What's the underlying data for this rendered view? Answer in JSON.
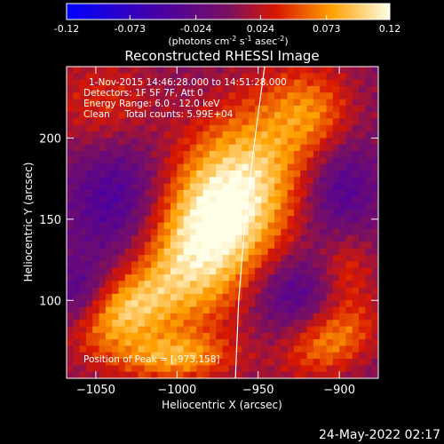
{
  "chart_data": {
    "type": "heatmap",
    "title": "Reconstructed RHESSI Image",
    "colorbar": {
      "ticks": [
        "-0.12",
        "-0.073",
        "-0.024",
        "0.024",
        "0.073",
        "0.12"
      ],
      "range": [
        -0.12,
        0.12
      ],
      "unit_parts": [
        "(photons cm",
        "-2",
        " s",
        "-1",
        " asec",
        "-2",
        ")"
      ]
    },
    "annotations": [
      "1-Nov-2015 14:46:28.000 to 14:51:28.000",
      "Detectors: 1F 5F 7F, Att 0",
      "Energy Range: 6.0 - 12.0 keV",
      "Clean     Total counts: 5.99E+04"
    ],
    "peak_label": "Position of Peak = [-973,158]",
    "peak": [
      -973,
      158
    ],
    "xlabel": "Heliocentric X (arcsec)",
    "ylabel": "Heliocentric Y (arcsec)",
    "xlim": [
      -1068,
      -876
    ],
    "ylim": [
      52,
      244
    ],
    "x_ticks": [
      {
        "value": -1050,
        "label": "−1050"
      },
      {
        "value": -1000,
        "label": "−1000"
      },
      {
        "value": -950,
        "label": "−950"
      },
      {
        "value": -900,
        "label": "−900"
      }
    ],
    "y_ticks": [
      {
        "value": 100,
        "label": "100"
      },
      {
        "value": 150,
        "label": "150"
      },
      {
        "value": 200,
        "label": "200"
      }
    ],
    "limb": [
      [
        -964,
        52
      ],
      [
        -962,
        100
      ],
      [
        -958,
        150
      ],
      [
        -952,
        200
      ],
      [
        -946,
        244
      ]
    ],
    "sources": [
      {
        "x": -975,
        "y": 150,
        "sx": 28,
        "sy": 52,
        "rot": -0.55,
        "a": 1.15
      },
      {
        "x": -1035,
        "y": 92,
        "sx": 22,
        "sy": 14,
        "rot": 0.6,
        "a": 0.55
      },
      {
        "x": -1000,
        "y": 65,
        "sx": 26,
        "sy": 10,
        "rot": 0.0,
        "a": 0.5
      },
      {
        "x": -905,
        "y": 75,
        "sx": 22,
        "sy": 14,
        "rot": 0.5,
        "a": 0.55
      },
      {
        "x": -1045,
        "y": 220,
        "sx": 24,
        "sy": 22,
        "rot": 0.0,
        "a": 0.35
      },
      {
        "x": -915,
        "y": 215,
        "sx": 18,
        "sy": 20,
        "rot": 0.5,
        "a": 0.4
      },
      {
        "x": -895,
        "y": 120,
        "sx": 12,
        "sy": 18,
        "rot": 0.0,
        "a": 0.35
      },
      {
        "x": -1035,
        "y": 160,
        "sx": 22,
        "sy": 30,
        "rot": 0.0,
        "a": -0.45
      },
      {
        "x": -900,
        "y": 170,
        "sx": 16,
        "sy": 26,
        "rot": 0.0,
        "a": -0.4
      },
      {
        "x": -930,
        "y": 105,
        "sx": 18,
        "sy": 16,
        "rot": 0.0,
        "a": -0.35
      },
      {
        "x": -1060,
        "y": 105,
        "sx": 12,
        "sy": 14,
        "rot": 0.0,
        "a": -0.3
      }
    ],
    "timestamp": "24-May-2022 02:17"
  }
}
